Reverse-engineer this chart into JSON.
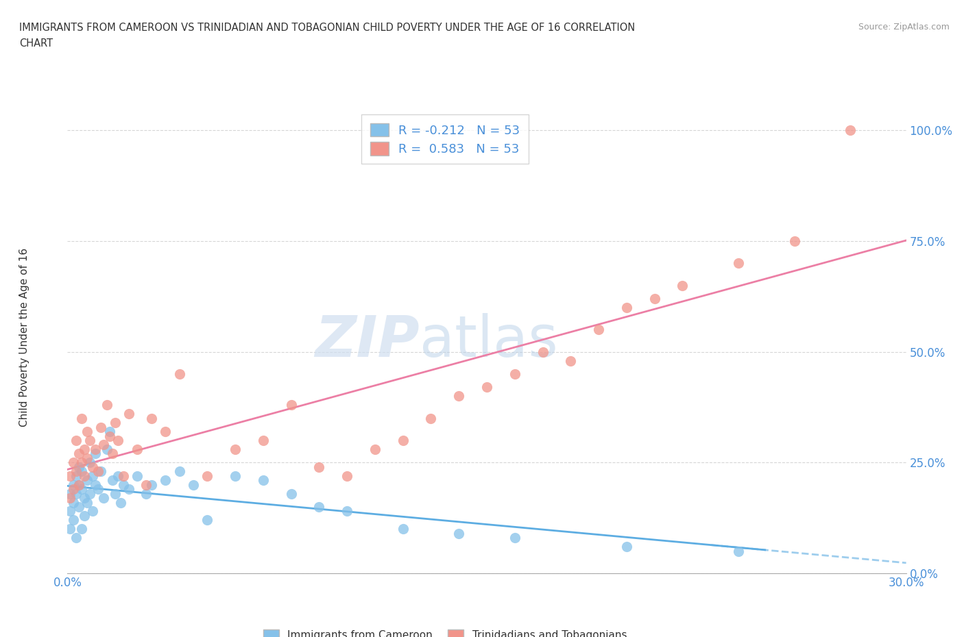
{
  "title_line1": "IMMIGRANTS FROM CAMEROON VS TRINIDADIAN AND TOBAGONIAN CHILD POVERTY UNDER THE AGE OF 16 CORRELATION",
  "title_line2": "CHART",
  "source": "Source: ZipAtlas.com",
  "ylabel": "Child Poverty Under the Age of 16",
  "xlim": [
    0.0,
    0.3
  ],
  "ylim": [
    0.0,
    1.05
  ],
  "ytick_labels": [
    "0.0%",
    "25.0%",
    "50.0%",
    "75.0%",
    "100.0%"
  ],
  "ytick_values": [
    0.0,
    0.25,
    0.5,
    0.75,
    1.0
  ],
  "xtick_vals": [
    0.0,
    0.05,
    0.1,
    0.15,
    0.2,
    0.25,
    0.3
  ],
  "xtick_labels": [
    "0.0%",
    "",
    "",
    "",
    "",
    "",
    "30.0%"
  ],
  "watermark_zip": "ZIP",
  "watermark_atlas": "atlas",
  "legend_label1": "Immigrants from Cameroon",
  "legend_label2": "Trinidadians and Tobagonians",
  "R1": -0.212,
  "N1": 53,
  "R2": 0.583,
  "N2": 53,
  "color1": "#85C1E9",
  "color2": "#F1948A",
  "line_color1": "#5DADE2",
  "line_color2": "#EC7FA5",
  "blue_scatter_x": [
    0.001,
    0.001,
    0.001,
    0.002,
    0.002,
    0.002,
    0.003,
    0.003,
    0.003,
    0.004,
    0.004,
    0.004,
    0.005,
    0.005,
    0.005,
    0.006,
    0.006,
    0.007,
    0.007,
    0.008,
    0.008,
    0.009,
    0.009,
    0.01,
    0.01,
    0.011,
    0.012,
    0.013,
    0.014,
    0.015,
    0.016,
    0.017,
    0.018,
    0.019,
    0.02,
    0.022,
    0.025,
    0.028,
    0.03,
    0.035,
    0.04,
    0.045,
    0.05,
    0.06,
    0.07,
    0.08,
    0.09,
    0.1,
    0.12,
    0.14,
    0.16,
    0.2,
    0.24
  ],
  "blue_scatter_y": [
    0.18,
    0.14,
    0.1,
    0.2,
    0.16,
    0.12,
    0.22,
    0.18,
    0.08,
    0.24,
    0.2,
    0.15,
    0.19,
    0.23,
    0.1,
    0.17,
    0.13,
    0.21,
    0.16,
    0.25,
    0.18,
    0.22,
    0.14,
    0.2,
    0.27,
    0.19,
    0.23,
    0.17,
    0.28,
    0.32,
    0.21,
    0.18,
    0.22,
    0.16,
    0.2,
    0.19,
    0.22,
    0.18,
    0.2,
    0.21,
    0.23,
    0.2,
    0.12,
    0.22,
    0.21,
    0.18,
    0.15,
    0.14,
    0.1,
    0.09,
    0.08,
    0.06,
    0.05
  ],
  "pink_scatter_x": [
    0.001,
    0.001,
    0.002,
    0.002,
    0.003,
    0.003,
    0.004,
    0.004,
    0.005,
    0.005,
    0.006,
    0.006,
    0.007,
    0.007,
    0.008,
    0.009,
    0.01,
    0.011,
    0.012,
    0.013,
    0.014,
    0.015,
    0.016,
    0.017,
    0.018,
    0.02,
    0.022,
    0.025,
    0.028,
    0.03,
    0.035,
    0.04,
    0.05,
    0.06,
    0.07,
    0.08,
    0.09,
    0.1,
    0.11,
    0.12,
    0.13,
    0.14,
    0.15,
    0.16,
    0.17,
    0.18,
    0.19,
    0.2,
    0.21,
    0.22,
    0.24,
    0.26,
    0.28
  ],
  "pink_scatter_y": [
    0.22,
    0.17,
    0.25,
    0.19,
    0.3,
    0.23,
    0.27,
    0.2,
    0.35,
    0.25,
    0.28,
    0.22,
    0.32,
    0.26,
    0.3,
    0.24,
    0.28,
    0.23,
    0.33,
    0.29,
    0.38,
    0.31,
    0.27,
    0.34,
    0.3,
    0.22,
    0.36,
    0.28,
    0.2,
    0.35,
    0.32,
    0.45,
    0.22,
    0.28,
    0.3,
    0.38,
    0.24,
    0.22,
    0.28,
    0.3,
    0.35,
    0.4,
    0.42,
    0.45,
    0.5,
    0.48,
    0.55,
    0.6,
    0.62,
    0.65,
    0.7,
    0.75,
    1.0
  ]
}
